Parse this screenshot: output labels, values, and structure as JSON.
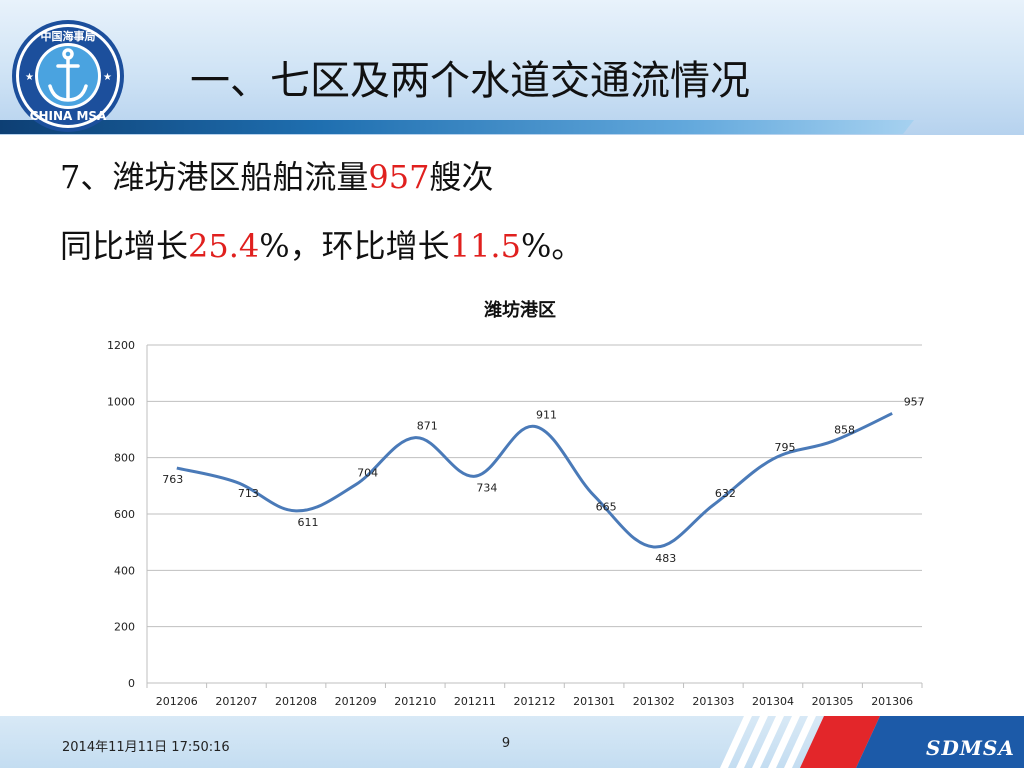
{
  "header": {
    "title": "一、七区及两个水道交通流情况",
    "logo": {
      "top_text": "中国海事局",
      "bottom_text": "CHINA MSA",
      "icon": "anchor-icon"
    }
  },
  "content": {
    "line1_prefix": "7、潍坊港区船舶流量",
    "line1_value": "957",
    "line1_suffix": "艘次",
    "line2_prefix": "同比增长",
    "line2_value1": "25.4",
    "line2_mid": "%，环比增长",
    "line2_value2": "11.5",
    "line2_suffix": "%。",
    "highlight_color": "#e0201e"
  },
  "chart_data": {
    "type": "line",
    "title": "潍坊港区",
    "categories": [
      "201206",
      "201207",
      "201208",
      "201209",
      "201210",
      "201211",
      "201212",
      "201301",
      "201302",
      "201303",
      "201304",
      "201305",
      "201306"
    ],
    "series": [
      {
        "values": [
          763,
          713,
          611,
          704,
          871,
          734,
          911,
          665,
          483,
          632,
          795,
          858,
          957
        ],
        "color": "#4a7ab8"
      }
    ],
    "ylim": [
      0,
      1200
    ],
    "yticks": [
      0,
      200,
      400,
      600,
      800,
      1000,
      1200
    ],
    "grid": true,
    "smooth": true,
    "data_labels": true
  },
  "footer": {
    "date": "2014年11月11日  17:50:16",
    "page": "9",
    "brand": "SDMSA"
  }
}
